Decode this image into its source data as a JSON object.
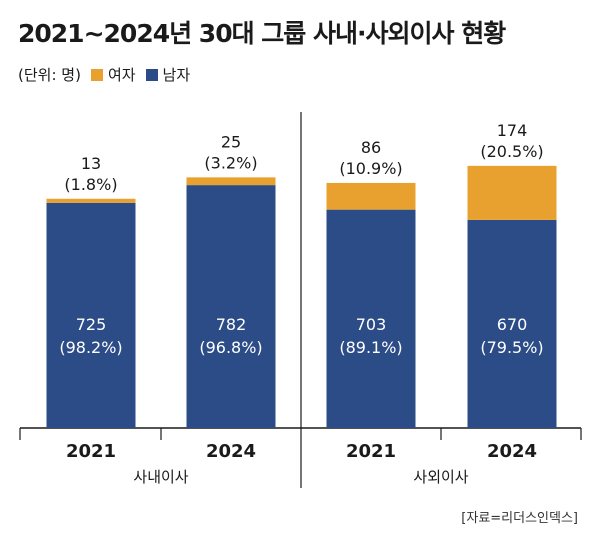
{
  "title": "2021~2024년 30대 그룹 사내·사외이사 현황",
  "legend": {
    "unit": "(단위: 명)",
    "female_label": "여자",
    "male_label": "남자"
  },
  "colors": {
    "female": "#E8A02E",
    "male": "#2B4C86",
    "axis": "#1a1a1a",
    "label_on_bar": "#ffffff"
  },
  "source": "[자료=리더스인덱스]",
  "chart_data": {
    "type": "bar",
    "stacked": true,
    "groups": [
      {
        "name": "사내이사",
        "bars": [
          {
            "year": "2021",
            "male": 725,
            "male_pct": "(98.2%)",
            "female": 13,
            "female_pct": "(1.8%)"
          },
          {
            "year": "2024",
            "male": 782,
            "male_pct": "(96.8%)",
            "female": 25,
            "female_pct": "(3.2%)"
          }
        ]
      },
      {
        "name": "사외이사",
        "bars": [
          {
            "year": "2021",
            "male": 703,
            "male_pct": "(89.1%)",
            "female": 86,
            "female_pct": "(10.9%)"
          },
          {
            "year": "2024",
            "male": 670,
            "male_pct": "(79.5%)",
            "female": 174,
            "female_pct": "(20.5%)"
          }
        ]
      }
    ],
    "series": [
      {
        "name": "여자",
        "key": "female"
      },
      {
        "name": "남자",
        "key": "male"
      }
    ],
    "legend_position": "top-left",
    "grid": false
  }
}
